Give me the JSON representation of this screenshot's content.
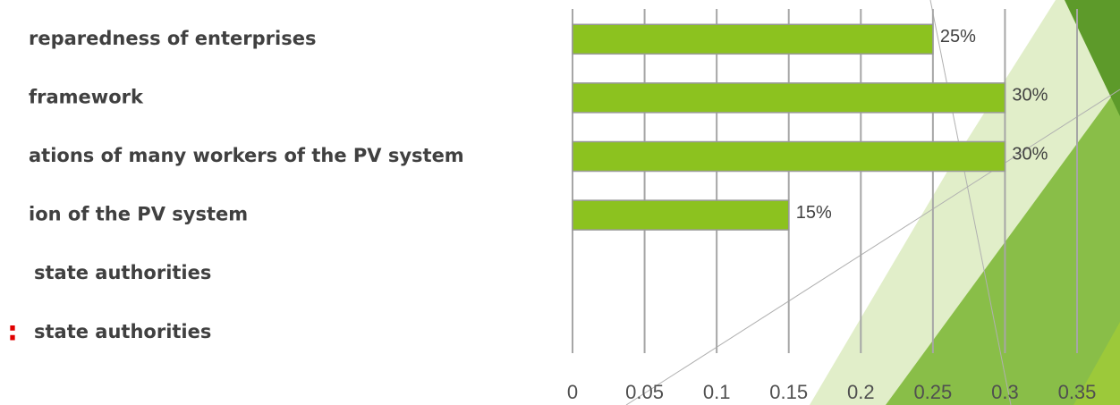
{
  "chart_data": {
    "type": "bar",
    "orientation": "horizontal",
    "categories": [
      "reparedness of enterprises",
      "framework",
      "ations of many workers of the PV system",
      "ion of the PV system",
      "state authorities",
      "state authorities"
    ],
    "values": [
      0.25,
      0.3,
      0.3,
      0.15,
      null,
      null
    ],
    "value_labels": [
      "25%",
      "30%",
      "30%",
      "15%",
      null,
      null
    ],
    "color": "#8cc21f",
    "xlim": [
      0,
      0.35
    ],
    "xticks": [
      0,
      0.05,
      0.1,
      0.15,
      0.2,
      0.25,
      0.3,
      0.35
    ],
    "grid": true,
    "marker": ":"
  }
}
